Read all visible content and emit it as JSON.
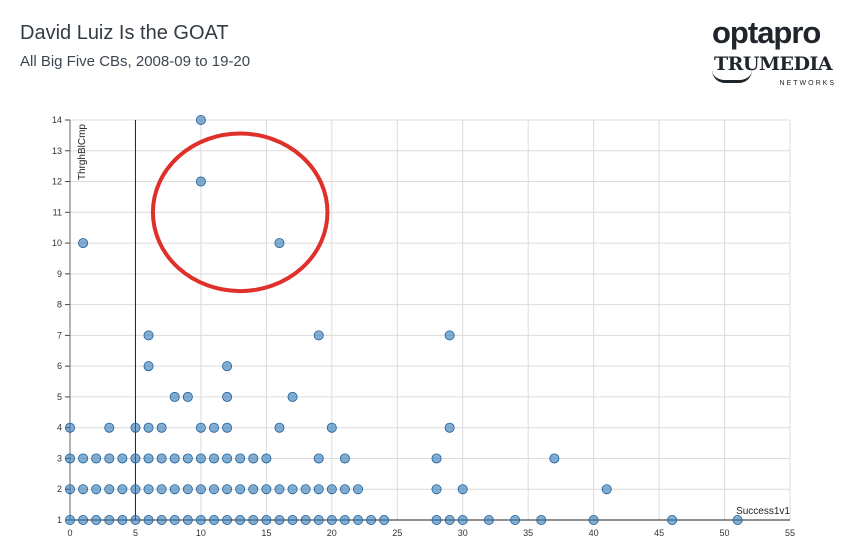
{
  "header": {
    "title": "David Luiz Is the GOAT",
    "subtitle": "All Big Five CBs, 2008-09 to 19-20"
  },
  "logo": {
    "line1": "optapro",
    "line2": "TRUMEDIA",
    "line3": "NETWORKS"
  },
  "chart_data": {
    "type": "scatter",
    "xlabel": "Success1v1",
    "ylabel": "ThrghBlCmp",
    "xlim": [
      0,
      55
    ],
    "ylim": [
      1,
      14
    ],
    "xticks": [
      0,
      5,
      10,
      15,
      20,
      25,
      30,
      35,
      40,
      45,
      50,
      55
    ],
    "yticks": [
      1,
      2,
      3,
      4,
      5,
      6,
      7,
      8,
      9,
      10,
      11,
      12,
      13,
      14
    ],
    "reference_lines": {
      "x": 5
    },
    "grid": true,
    "point_color": "#2f78b8",
    "annotation_color": "#e0302a",
    "annotation": {
      "type": "ellipse",
      "encloses": [
        [
          10,
          12
        ],
        [
          16,
          10
        ]
      ]
    },
    "points": [
      [
        10,
        14
      ],
      [
        10,
        12
      ],
      [
        1,
        10
      ],
      [
        16,
        10
      ],
      [
        6,
        7
      ],
      [
        19,
        7
      ],
      [
        29,
        7
      ],
      [
        6,
        6
      ],
      [
        12,
        6
      ],
      [
        8,
        5
      ],
      [
        9,
        5
      ],
      [
        12,
        5
      ],
      [
        17,
        5
      ],
      [
        0,
        4
      ],
      [
        3,
        4
      ],
      [
        5,
        4
      ],
      [
        6,
        4
      ],
      [
        7,
        4
      ],
      [
        10,
        4
      ],
      [
        11,
        4
      ],
      [
        12,
        4
      ],
      [
        16,
        4
      ],
      [
        20,
        4
      ],
      [
        29,
        4
      ],
      [
        0,
        3
      ],
      [
        1,
        3
      ],
      [
        2,
        3
      ],
      [
        3,
        3
      ],
      [
        4,
        3
      ],
      [
        5,
        3
      ],
      [
        6,
        3
      ],
      [
        7,
        3
      ],
      [
        8,
        3
      ],
      [
        9,
        3
      ],
      [
        10,
        3
      ],
      [
        11,
        3
      ],
      [
        12,
        3
      ],
      [
        13,
        3
      ],
      [
        14,
        3
      ],
      [
        15,
        3
      ],
      [
        19,
        3
      ],
      [
        21,
        3
      ],
      [
        28,
        3
      ],
      [
        37,
        3
      ],
      [
        0,
        2
      ],
      [
        1,
        2
      ],
      [
        2,
        2
      ],
      [
        3,
        2
      ],
      [
        4,
        2
      ],
      [
        5,
        2
      ],
      [
        6,
        2
      ],
      [
        7,
        2
      ],
      [
        8,
        2
      ],
      [
        9,
        2
      ],
      [
        10,
        2
      ],
      [
        11,
        2
      ],
      [
        12,
        2
      ],
      [
        13,
        2
      ],
      [
        14,
        2
      ],
      [
        15,
        2
      ],
      [
        16,
        2
      ],
      [
        17,
        2
      ],
      [
        18,
        2
      ],
      [
        19,
        2
      ],
      [
        20,
        2
      ],
      [
        21,
        2
      ],
      [
        22,
        2
      ],
      [
        28,
        2
      ],
      [
        30,
        2
      ],
      [
        41,
        2
      ],
      [
        0,
        1
      ],
      [
        1,
        1
      ],
      [
        2,
        1
      ],
      [
        3,
        1
      ],
      [
        4,
        1
      ],
      [
        5,
        1
      ],
      [
        6,
        1
      ],
      [
        7,
        1
      ],
      [
        8,
        1
      ],
      [
        9,
        1
      ],
      [
        10,
        1
      ],
      [
        11,
        1
      ],
      [
        12,
        1
      ],
      [
        13,
        1
      ],
      [
        14,
        1
      ],
      [
        15,
        1
      ],
      [
        16,
        1
      ],
      [
        17,
        1
      ],
      [
        18,
        1
      ],
      [
        19,
        1
      ],
      [
        20,
        1
      ],
      [
        21,
        1
      ],
      [
        22,
        1
      ],
      [
        23,
        1
      ],
      [
        24,
        1
      ],
      [
        28,
        1
      ],
      [
        29,
        1
      ],
      [
        30,
        1
      ],
      [
        32,
        1
      ],
      [
        34,
        1
      ],
      [
        36,
        1
      ],
      [
        40,
        1
      ],
      [
        46,
        1
      ],
      [
        51,
        1
      ]
    ]
  }
}
